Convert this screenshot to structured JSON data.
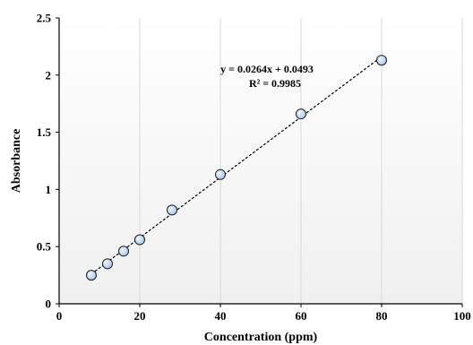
{
  "chart_data": {
    "type": "scatter",
    "xlabel": "Concentration (ppm)",
    "ylabel": "Absorbance",
    "xlim": [
      0,
      100
    ],
    "ylim": [
      0,
      2.5
    ],
    "x_ticks": [
      "0",
      "20",
      "40",
      "60",
      "80",
      "100"
    ],
    "y_ticks": [
      "0",
      "0.5",
      "1",
      "1.5",
      "2",
      "2.5"
    ],
    "grid": "vertical",
    "series": [
      {
        "x": [
          8,
          12,
          16,
          20,
          28,
          40,
          60,
          80
        ],
        "y": [
          0.25,
          0.35,
          0.46,
          0.56,
          0.82,
          1.13,
          1.66,
          2.13
        ]
      }
    ],
    "trendline": {
      "type": "linear",
      "slope": 0.0264,
      "intercept": 0.0493,
      "x_range": [
        8,
        80
      ]
    },
    "annotations": [
      "y = 0.0264x + 0.0493",
      "R² = 0.9985"
    ],
    "colors": {
      "marker_fill": "#c9dcf3",
      "marker_stroke": "#1a1a1a",
      "trendline": "#000000",
      "grid": "#d9d9d9"
    }
  }
}
